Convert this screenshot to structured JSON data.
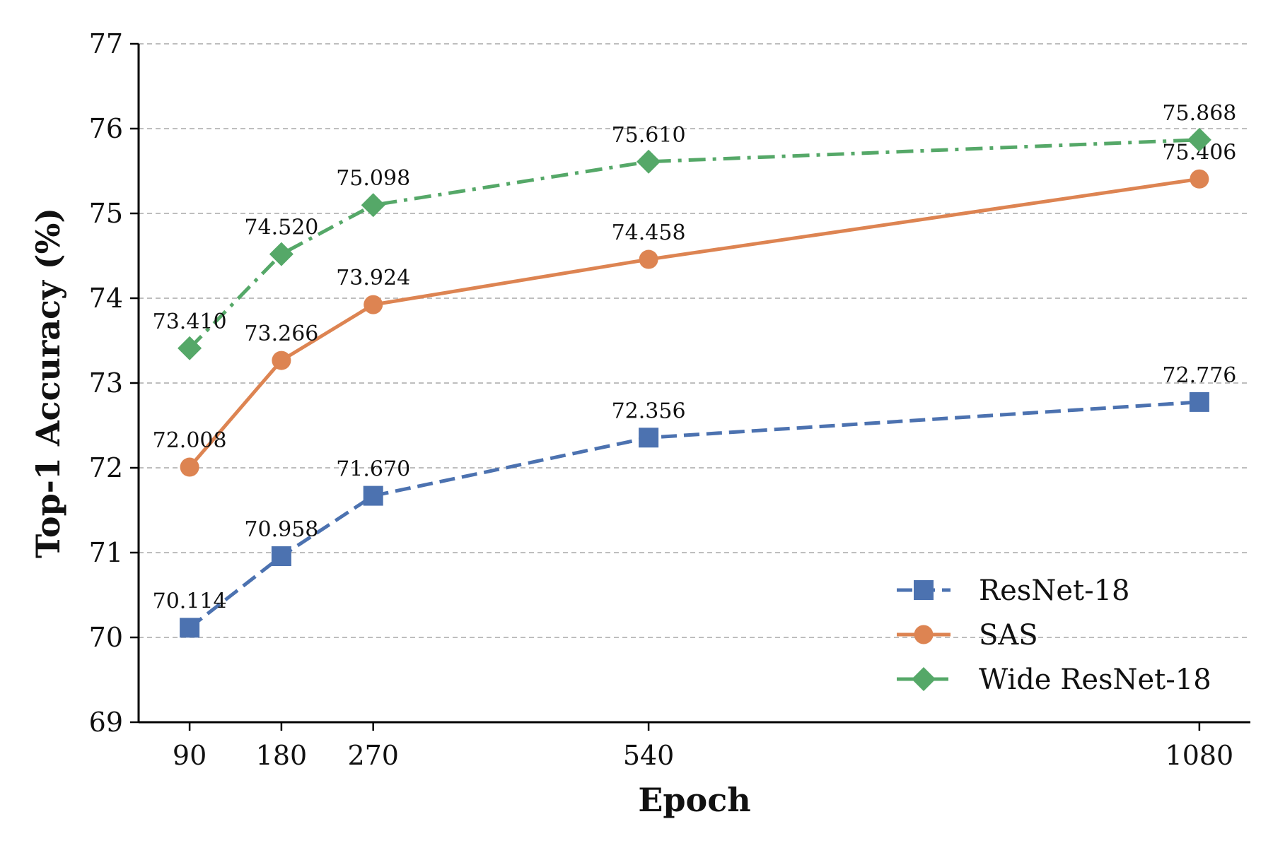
{
  "chart_data": {
    "type": "line",
    "title": "",
    "xlabel": "Epoch",
    "ylabel": "Top-1 Accuracy (%)",
    "x": [
      90,
      180,
      270,
      540,
      1080
    ],
    "x_tick_labels": [
      "90",
      "180",
      "270",
      "540",
      "1080"
    ],
    "xlim": [
      40,
      1130
    ],
    "ylim": [
      69,
      77
    ],
    "y_ticks": [
      69,
      70,
      71,
      72,
      73,
      74,
      75,
      76,
      77
    ],
    "y_tick_labels": [
      "69",
      "70",
      "71",
      "72",
      "73",
      "74",
      "75",
      "76",
      "77"
    ],
    "grid": "horizontal dashed",
    "legend_position": "lower-right",
    "series": [
      {
        "name": "ResNet-18",
        "values": [
          70.114,
          70.958,
          71.67,
          72.356,
          72.776
        ],
        "labels": [
          "70.114",
          "70.958",
          "71.670",
          "72.356",
          "72.776"
        ],
        "color": "#4c72b0",
        "line_style": "dashed",
        "marker": "square"
      },
      {
        "name": "SAS",
        "values": [
          72.008,
          73.266,
          73.924,
          74.458,
          75.406
        ],
        "labels": [
          "72.008",
          "73.266",
          "73.924",
          "74.458",
          "75.406"
        ],
        "color": "#dd8452",
        "line_style": "solid",
        "marker": "circle"
      },
      {
        "name": "Wide ResNet-18",
        "values": [
          73.41,
          74.52,
          75.098,
          75.61,
          75.868
        ],
        "labels": [
          "73.410",
          "74.520",
          "75.098",
          "75.610",
          "75.868"
        ],
        "color": "#55a868",
        "line_style": "dashdot",
        "marker": "diamond"
      }
    ]
  }
}
